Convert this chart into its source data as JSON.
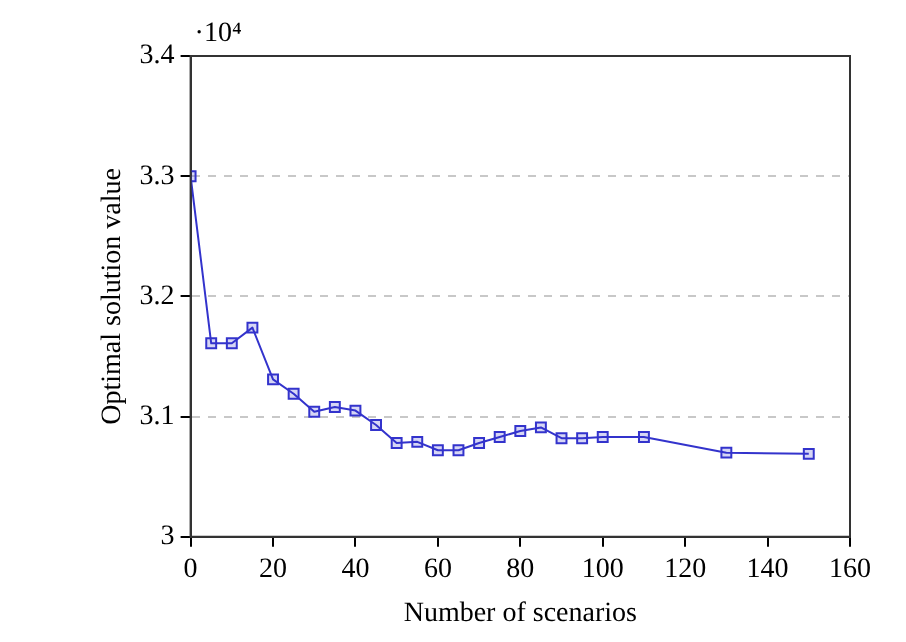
{
  "chart_data": {
    "type": "line",
    "xlabel": "Number of scenarios",
    "ylabel": "Optimal solution value",
    "x": [
      0,
      5,
      10,
      15,
      20,
      25,
      30,
      35,
      40,
      45,
      50,
      55,
      60,
      65,
      70,
      75,
      80,
      85,
      90,
      95,
      100,
      110,
      130,
      150
    ],
    "series": [
      {
        "color": "#3333cc",
        "values": [
          3.3,
          3.161,
          3.161,
          3.174,
          3.131,
          3.119,
          3.104,
          3.108,
          3.105,
          3.093,
          3.078,
          3.079,
          3.072,
          3.072,
          3.078,
          3.083,
          3.088,
          3.091,
          3.082,
          3.082,
          3.083,
          3.083,
          3.07,
          3.069
        ]
      }
    ],
    "xlim": [
      0,
      160
    ],
    "xticks": [
      0,
      20,
      40,
      60,
      80,
      100,
      120,
      140,
      160
    ],
    "ylim": [
      3,
      3.4
    ],
    "yticks": [
      3,
      3.1,
      3.2,
      3.3,
      3.4
    ],
    "annotations": [
      "·10⁴"
    ],
    "grid": "y",
    "legend": false,
    "marker": "square",
    "line_style": "solid"
  }
}
